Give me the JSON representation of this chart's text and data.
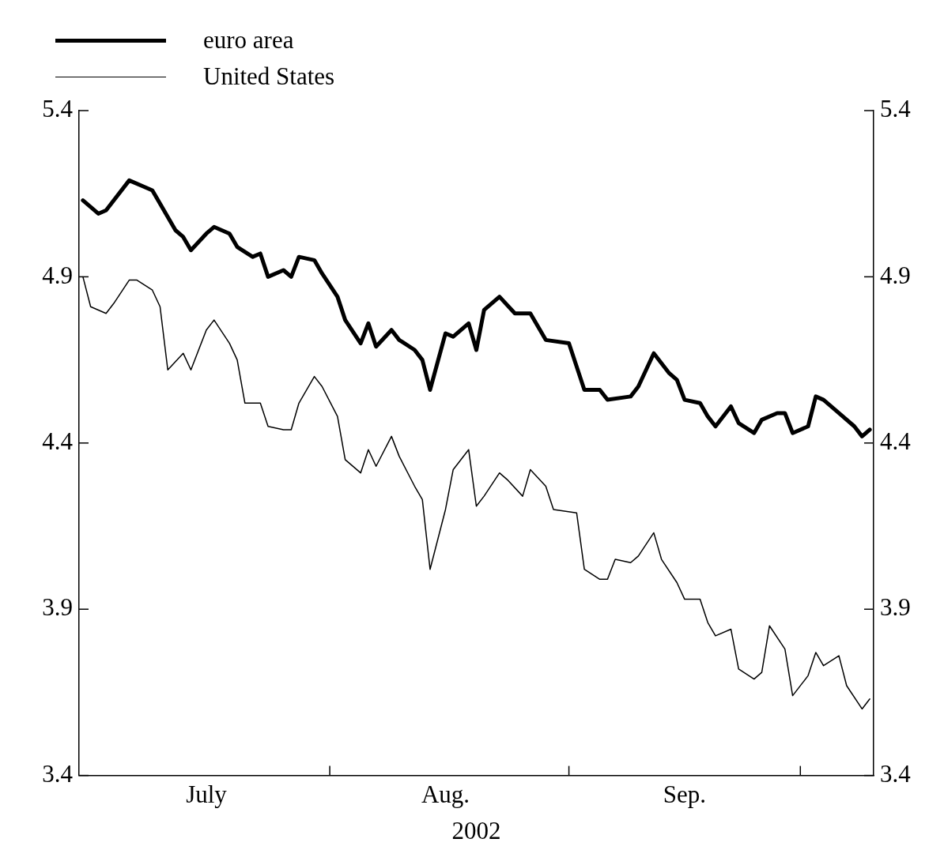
{
  "chart_data": {
    "type": "line",
    "xlabel": "2002",
    "legend": "top left",
    "grid": false,
    "marker": "none",
    "line_style": "solid",
    "xlim": [
      "2002-06-29T12:00",
      "2002-10-10T12:00"
    ],
    "xticks": [
      {
        "value": "2002-07-16",
        "label": "July"
      },
      {
        "value": "2002-08-01",
        "label": null
      },
      {
        "value": "2002-08-16",
        "label": "Aug."
      },
      {
        "value": "2002-09-01",
        "label": null
      },
      {
        "value": "2002-09-16",
        "label": "Sep."
      },
      {
        "value": "2002-10-01",
        "label": null
      }
    ],
    "ylim": [
      3.4,
      5.4
    ],
    "yticks": [
      3.4,
      3.9,
      4.4,
      4.9,
      5.4
    ],
    "y2lim": [
      3.4,
      5.4
    ],
    "y2ticks": [
      3.4,
      3.9,
      4.4,
      4.9,
      5.4
    ],
    "series": [
      {
        "name": "euro area",
        "color": "#000000",
        "x": [
          "2002-06-30",
          "2002-07-02",
          "2002-07-03",
          "2002-07-06",
          "2002-07-08",
          "2002-07-09",
          "2002-07-12",
          "2002-07-13",
          "2002-07-14",
          "2002-07-16",
          "2002-07-17",
          "2002-07-19",
          "2002-07-20",
          "2002-07-22",
          "2002-07-23",
          "2002-07-24",
          "2002-07-26",
          "2002-07-27",
          "2002-07-28",
          "2002-07-30",
          "2002-07-31",
          "2002-08-02",
          "2002-08-03",
          "2002-08-05",
          "2002-08-06",
          "2002-08-07",
          "2002-08-09",
          "2002-08-10",
          "2002-08-12",
          "2002-08-13",
          "2002-08-14",
          "2002-08-16",
          "2002-08-17",
          "2002-08-19",
          "2002-08-20",
          "2002-08-21",
          "2002-08-23",
          "2002-08-25",
          "2002-08-27",
          "2002-08-29",
          "2002-09-01",
          "2002-09-03",
          "2002-09-05",
          "2002-09-06",
          "2002-09-09",
          "2002-09-10",
          "2002-09-12",
          "2002-09-14",
          "2002-09-15",
          "2002-09-16",
          "2002-09-18",
          "2002-09-19",
          "2002-09-20",
          "2002-09-22",
          "2002-09-23",
          "2002-09-25",
          "2002-09-26",
          "2002-09-28",
          "2002-09-29",
          "2002-09-30",
          "2002-10-02",
          "2002-10-03",
          "2002-10-04",
          "2002-10-06",
          "2002-10-08",
          "2002-10-09",
          "2002-10-10"
        ],
        "values": [
          5.13,
          5.09,
          5.1,
          5.19,
          5.17,
          5.16,
          5.04,
          5.02,
          4.98,
          5.03,
          5.05,
          5.03,
          4.99,
          4.96,
          4.97,
          4.9,
          4.92,
          4.9,
          4.96,
          4.95,
          4.91,
          4.84,
          4.77,
          4.7,
          4.76,
          4.69,
          4.74,
          4.71,
          4.68,
          4.65,
          4.56,
          4.73,
          4.72,
          4.76,
          4.68,
          4.8,
          4.84,
          4.79,
          4.79,
          4.71,
          4.7,
          4.56,
          4.56,
          4.53,
          4.54,
          4.57,
          4.67,
          4.61,
          4.59,
          4.53,
          4.52,
          4.48,
          4.45,
          4.51,
          4.46,
          4.43,
          4.47,
          4.49,
          4.49,
          4.43,
          4.45,
          4.54,
          4.53,
          4.49,
          4.45,
          4.42,
          4.44
        ]
      },
      {
        "name": "United States",
        "color": "#000000",
        "x": [
          "2002-06-30",
          "2002-07-01",
          "2002-07-03",
          "2002-07-04",
          "2002-07-06",
          "2002-07-07",
          "2002-07-09",
          "2002-07-10",
          "2002-07-11",
          "2002-07-13",
          "2002-07-14",
          "2002-07-16",
          "2002-07-17",
          "2002-07-19",
          "2002-07-20",
          "2002-07-21",
          "2002-07-23",
          "2002-07-24",
          "2002-07-26",
          "2002-07-27",
          "2002-07-28",
          "2002-07-30",
          "2002-07-31",
          "2002-08-02",
          "2002-08-03",
          "2002-08-05",
          "2002-08-06",
          "2002-08-07",
          "2002-08-09",
          "2002-08-10",
          "2002-08-12",
          "2002-08-13",
          "2002-08-14",
          "2002-08-16",
          "2002-08-17",
          "2002-08-19",
          "2002-08-20",
          "2002-08-21",
          "2002-08-23",
          "2002-08-24",
          "2002-08-26",
          "2002-08-27",
          "2002-08-29",
          "2002-08-30",
          "2002-09-02",
          "2002-09-03",
          "2002-09-05",
          "2002-09-06",
          "2002-09-07",
          "2002-09-09",
          "2002-09-10",
          "2002-09-12",
          "2002-09-13",
          "2002-09-15",
          "2002-09-16",
          "2002-09-18",
          "2002-09-19",
          "2002-09-20",
          "2002-09-22",
          "2002-09-23",
          "2002-09-25",
          "2002-09-26",
          "2002-09-27",
          "2002-09-29",
          "2002-09-30",
          "2002-10-02",
          "2002-10-03",
          "2002-10-04",
          "2002-10-06",
          "2002-10-07",
          "2002-10-09",
          "2002-10-10"
        ],
        "values": [
          4.9,
          4.81,
          4.79,
          4.82,
          4.89,
          4.89,
          4.86,
          4.81,
          4.62,
          4.67,
          4.62,
          4.74,
          4.77,
          4.7,
          4.65,
          4.52,
          4.52,
          4.45,
          4.44,
          4.44,
          4.52,
          4.6,
          4.57,
          4.48,
          4.35,
          4.31,
          4.38,
          4.33,
          4.42,
          4.36,
          4.27,
          4.23,
          4.02,
          4.2,
          4.32,
          4.38,
          4.21,
          4.24,
          4.31,
          4.29,
          4.24,
          4.32,
          4.27,
          4.2,
          4.19,
          4.02,
          3.99,
          3.99,
          4.05,
          4.04,
          4.06,
          4.13,
          4.05,
          3.98,
          3.93,
          3.93,
          3.86,
          3.82,
          3.84,
          3.72,
          3.69,
          3.71,
          3.85,
          3.78,
          3.64,
          3.7,
          3.77,
          3.73,
          3.76,
          3.67,
          3.6,
          3.63
        ]
      }
    ]
  }
}
